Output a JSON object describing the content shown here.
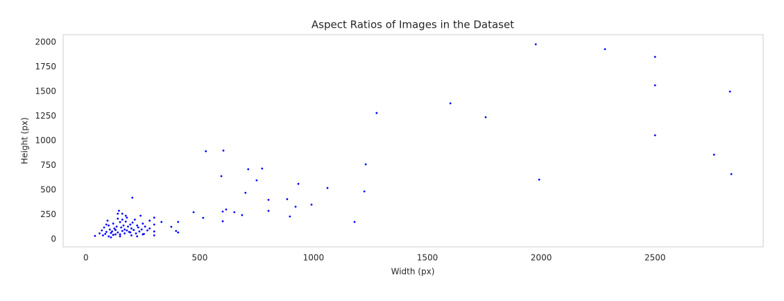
{
  "chart_data": {
    "type": "scatter",
    "title": "Aspect Ratios of Images in the Dataset",
    "x_label": "Width (px)",
    "y_label": "Height (px)",
    "color": "#0000ff",
    "xlim": [
      -100,
      2975
    ],
    "ylim": [
      -77,
      2077
    ],
    "xticks": [
      0,
      500,
      1000,
      1500,
      2000,
      2500
    ],
    "yticks": [
      0,
      250,
      500,
      750,
      1000,
      1250,
      1500,
      1750,
      2000
    ],
    "grid": false,
    "x": [
      1976,
      2280,
      2500,
      2500,
      2500,
      2829,
      2759,
      2835,
      1991,
      1756,
      1601,
      1277,
      1229,
      1223,
      1180,
      1061,
      991,
      933,
      921,
      896,
      884,
      802,
      802,
      774,
      750,
      713,
      701,
      686,
      652,
      616,
      604,
      601,
      601,
      595,
      527,
      515,
      473,
      405,
      405,
      396,
      375,
      332,
      204,
      40,
      60,
      70,
      75,
      80,
      85,
      90,
      95,
      100,
      100,
      105,
      110,
      115,
      120,
      120,
      125,
      130,
      135,
      140,
      140,
      145,
      150,
      150,
      155,
      160,
      160,
      165,
      170,
      170,
      175,
      180,
      180,
      185,
      190,
      195,
      200,
      200,
      205,
      210,
      215,
      220,
      225,
      230,
      235,
      240,
      245,
      250,
      255,
      260,
      270,
      280,
      300,
      300,
      300,
      300,
      150,
      130,
      110,
      90,
      175,
      195,
      225,
      250,
      280,
      160,
      140,
      120
    ],
    "y": [
      1979,
      1930,
      1852,
      1563,
      1056,
      1500,
      859,
      662,
      606,
      1239,
      1380,
      1282,
      761,
      486,
      176,
      521,
      352,
      563,
      331,
      232,
      408,
      401,
      289,
      718,
      599,
      711,
      472,
      246,
      275,
      303,
      901,
      282,
      183,
      641,
      894,
      218,
      275,
      176,
      70,
      85,
      127,
      176,
      423,
      35,
      60,
      90,
      40,
      120,
      55,
      75,
      190,
      30,
      140,
      100,
      65,
      80,
      45,
      160,
      110,
      95,
      130,
      70,
      210,
      290,
      50,
      175,
      120,
      85,
      260,
      140,
      100,
      60,
      180,
      90,
      220,
      130,
      75,
      150,
      40,
      110,
      170,
      95,
      200,
      60,
      140,
      120,
      80,
      240,
      100,
      160,
      55,
      130,
      90,
      110,
      40,
      80,
      150,
      220,
      30,
      50,
      20,
      150,
      240,
      70,
      30,
      50,
      190,
      200,
      260,
      45
    ]
  }
}
